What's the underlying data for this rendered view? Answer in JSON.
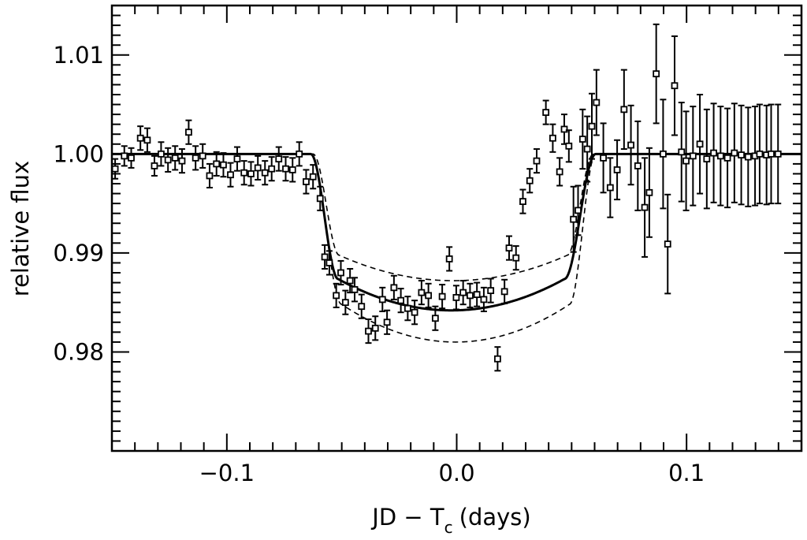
{
  "chart_data": {
    "type": "scatter",
    "title": "",
    "xlabel": "JD − T",
    "xlabel_subscript": "c",
    "xlabel_suffix": "(days)",
    "ylabel": "relative flux",
    "xlim": [
      -0.15,
      0.15
    ],
    "ylim": [
      0.97,
      1.015
    ],
    "grid": false,
    "legend": "none",
    "x_tick_labels": [
      {
        "value": -0.1,
        "label": "−0.1"
      },
      {
        "value": 0.0,
        "label": "0.0"
      },
      {
        "value": 0.1,
        "label": "0.1"
      }
    ],
    "y_tick_labels": [
      {
        "value": 0.98,
        "label": "0.98"
      },
      {
        "value": 0.99,
        "label": "0.99"
      },
      {
        "value": 1.0,
        "label": "1.00"
      },
      {
        "value": 1.01,
        "label": "1.01"
      }
    ],
    "series": [
      {
        "kind": "points-with-error-bars",
        "marker": "open-square",
        "x": [
          -0.1486,
          -0.1446,
          -0.1416,
          -0.1376,
          -0.1346,
          -0.1315,
          -0.1286,
          -0.1256,
          -0.1225,
          -0.1195,
          -0.1166,
          -0.1136,
          -0.1105,
          -0.1075,
          -0.1045,
          -0.1015,
          -0.0984,
          -0.0955,
          -0.0925,
          -0.0895,
          -0.0865,
          -0.0834,
          -0.0805,
          -0.0774,
          -0.0744,
          -0.0714,
          -0.0685,
          -0.0655,
          -0.0625,
          -0.0594,
          -0.0574,
          -0.0554,
          -0.0524,
          -0.0504,
          -0.0484,
          -0.0464,
          -0.0444,
          -0.0414,
          -0.0384,
          -0.0354,
          -0.0323,
          -0.0303,
          -0.0273,
          -0.0243,
          -0.0213,
          -0.0183,
          -0.0153,
          -0.0123,
          -0.0093,
          -0.0063,
          -0.0032,
          -0.0002,
          0.0028,
          0.0058,
          0.0088,
          0.0118,
          0.0148,
          0.0178,
          0.0208,
          0.0228,
          0.0258,
          0.0288,
          0.0318,
          0.0348,
          0.0388,
          0.0418,
          0.0448,
          0.0468,
          0.0488,
          0.0508,
          0.0528,
          0.0548,
          0.0568,
          0.0588,
          0.0608,
          0.0638,
          0.0668,
          0.0698,
          0.0728,
          0.0758,
          0.0788,
          0.0818,
          0.0838,
          0.0868,
          0.0898,
          0.0918,
          0.0948,
          0.0978,
          0.0998,
          0.1028,
          0.1058,
          0.1088,
          0.1118,
          0.1148,
          0.1178,
          0.1208,
          0.1238,
          0.1268,
          0.1298,
          0.1318,
          0.1348,
          0.1368,
          0.1398
        ],
        "y": [
          0.9985,
          0.9998,
          0.9996,
          1.0016,
          1.0014,
          0.9988,
          1.0,
          0.9994,
          0.9996,
          0.9993,
          1.0022,
          0.9996,
          0.9998,
          0.9978,
          0.999,
          0.9989,
          0.9979,
          0.9995,
          0.9981,
          0.998,
          0.9986,
          0.9981,
          0.9985,
          0.9995,
          0.9985,
          0.9984,
          1.0,
          0.9972,
          0.9977,
          0.9955,
          0.9896,
          0.989,
          0.9857,
          0.988,
          0.985,
          0.9872,
          0.9863,
          0.9846,
          0.9821,
          0.9824,
          0.9853,
          0.983,
          0.9865,
          0.9852,
          0.9844,
          0.984,
          0.986,
          0.9857,
          0.9834,
          0.9856,
          0.9894,
          0.9855,
          0.986,
          0.9857,
          0.9858,
          0.9853,
          0.9862,
          0.9793,
          0.9861,
          0.9905,
          0.9895,
          0.9952,
          0.9973,
          0.9993,
          1.0042,
          1.0016,
          0.9982,
          1.0025,
          1.0008,
          0.9934,
          0.9943,
          1.0015,
          1.0005,
          1.0028,
          1.0052,
          0.9996,
          0.9966,
          0.9984,
          1.0045,
          1.0009,
          0.9988,
          0.9946,
          0.9961,
          1.0081,
          1.0,
          0.9909,
          1.0069,
          1.0002,
          0.9993,
          0.9998,
          1.001,
          0.9995,
          1.0001,
          0.9998,
          0.9996,
          1.0001,
          0.9999,
          0.9997,
          0.9998,
          1.0,
          0.9999,
          1.0,
          1.0
        ],
        "yerr": [
          0.001,
          0.001,
          0.001,
          0.0012,
          0.0012,
          0.001,
          0.0012,
          0.0012,
          0.0012,
          0.0012,
          0.0012,
          0.0012,
          0.0012,
          0.0012,
          0.0012,
          0.0012,
          0.0012,
          0.0012,
          0.0012,
          0.0012,
          0.0012,
          0.0012,
          0.0012,
          0.0012,
          0.0012,
          0.0012,
          0.0012,
          0.0012,
          0.0012,
          0.0012,
          0.0012,
          0.0012,
          0.0012,
          0.0012,
          0.0012,
          0.0012,
          0.0012,
          0.0012,
          0.0012,
          0.0012,
          0.0012,
          0.0012,
          0.0012,
          0.0012,
          0.0012,
          0.0012,
          0.0012,
          0.0012,
          0.0012,
          0.0012,
          0.0012,
          0.0012,
          0.0012,
          0.0012,
          0.0012,
          0.0012,
          0.0012,
          0.0012,
          0.0012,
          0.0012,
          0.0012,
          0.0012,
          0.0012,
          0.0012,
          0.0012,
          0.0014,
          0.0014,
          0.0015,
          0.0016,
          0.0033,
          0.0025,
          0.003,
          0.0033,
          0.0033,
          0.0033,
          0.0035,
          0.003,
          0.003,
          0.004,
          0.004,
          0.0045,
          0.005,
          0.0045,
          0.005,
          0.0055,
          0.005,
          0.005,
          0.005,
          0.005,
          0.005,
          0.005,
          0.005,
          0.005,
          0.005,
          0.005,
          0.005,
          0.005,
          0.005,
          0.005,
          0.005,
          0.005,
          0.005,
          0.005
        ]
      },
      {
        "kind": "model-curve",
        "line": "solid",
        "depth": 0.0158,
        "t_first_contact": -0.0635,
        "t_second_contact": -0.0515,
        "t_third_contact": 0.0468,
        "t_fourth_contact": 0.0605
      },
      {
        "kind": "model-curve",
        "line": "dashed",
        "depth": 0.0128,
        "t_first_contact": -0.0625,
        "t_second_contact": -0.051,
        "t_third_contact": 0.048,
        "t_fourth_contact": 0.0595
      },
      {
        "kind": "model-curve",
        "line": "dashed",
        "depth": 0.019,
        "t_first_contact": -0.0635,
        "t_second_contact": -0.05,
        "t_third_contact": 0.049,
        "t_fourth_contact": 0.0605
      }
    ]
  }
}
